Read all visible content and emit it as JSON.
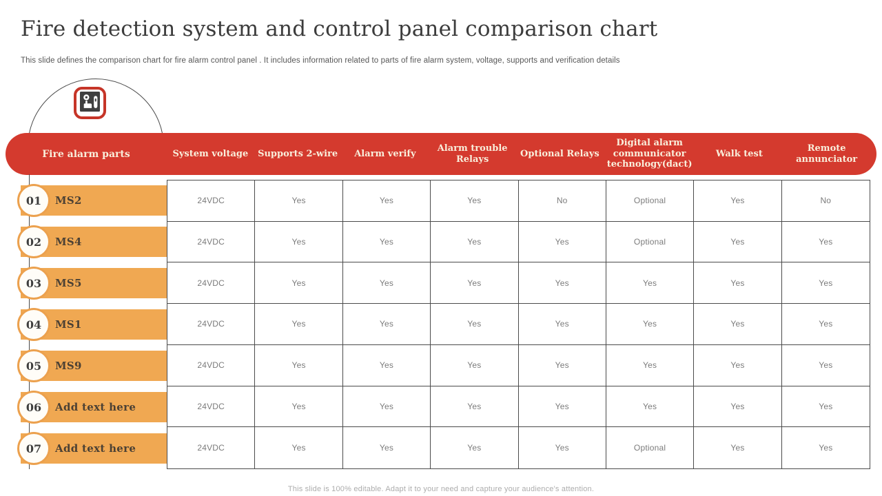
{
  "slide": {
    "title": "Fire detection system and control panel comparison chart",
    "subtitle": "This slide defines the comparison chart for fire alarm control panel . It includes information related to parts of fire alarm system, voltage, supports  and verification details",
    "footer": "This slide is 100% editable. Adapt it to your need and capture your audience's attention."
  },
  "icon": {
    "name": "fire-alarm-call-point-icon"
  },
  "colors": {
    "header_red": "#d43a2e",
    "icon_border_red": "#c63528",
    "header_text_cream": "#f9eedb",
    "row_bar_orange": "#f0a852",
    "circle_border_orange": "#eca14e",
    "table_border": "#4a4a4a",
    "cell_text_gray": "#7b7b7b",
    "label_text_brown": "#4c4134",
    "title_gray": "#3c3c3c"
  },
  "table": {
    "header": [
      "Fire alarm parts",
      "System voltage",
      "Supports 2-wire",
      "Alarm verify",
      "Alarm trouble Relays",
      "Optional Relays",
      "Digital alarm communicator technology(dact)",
      "Walk test",
      "Remote annunciator"
    ],
    "rows": [
      {
        "num": "01",
        "label": "MS2",
        "values": [
          "24VDC",
          "Yes",
          "Yes",
          "Yes",
          "No",
          "Optional",
          "Yes",
          "No"
        ]
      },
      {
        "num": "02",
        "label": "MS4",
        "values": [
          "24VDC",
          "Yes",
          "Yes",
          "Yes",
          "Yes",
          "Optional",
          "Yes",
          "Yes"
        ]
      },
      {
        "num": "03",
        "label": "MS5",
        "values": [
          "24VDC",
          "Yes",
          "Yes",
          "Yes",
          "Yes",
          "Yes",
          "Yes",
          "Yes"
        ]
      },
      {
        "num": "04",
        "label": "MS1",
        "values": [
          "24VDC",
          "Yes",
          "Yes",
          "Yes",
          "Yes",
          "Yes",
          "Yes",
          "Yes"
        ]
      },
      {
        "num": "05",
        "label": "MS9",
        "values": [
          "24VDC",
          "Yes",
          "Yes",
          "Yes",
          "Yes",
          "Yes",
          "Yes",
          "Yes"
        ]
      },
      {
        "num": "06",
        "label": "Add text here",
        "values": [
          "24VDC",
          "Yes",
          "Yes",
          "Yes",
          "Yes",
          "Yes",
          "Yes",
          "Yes"
        ]
      },
      {
        "num": "07",
        "label": "Add text here",
        "values": [
          "24VDC",
          "Yes",
          "Yes",
          "Yes",
          "Yes",
          "Optional",
          "Yes",
          "Yes"
        ]
      }
    ]
  }
}
